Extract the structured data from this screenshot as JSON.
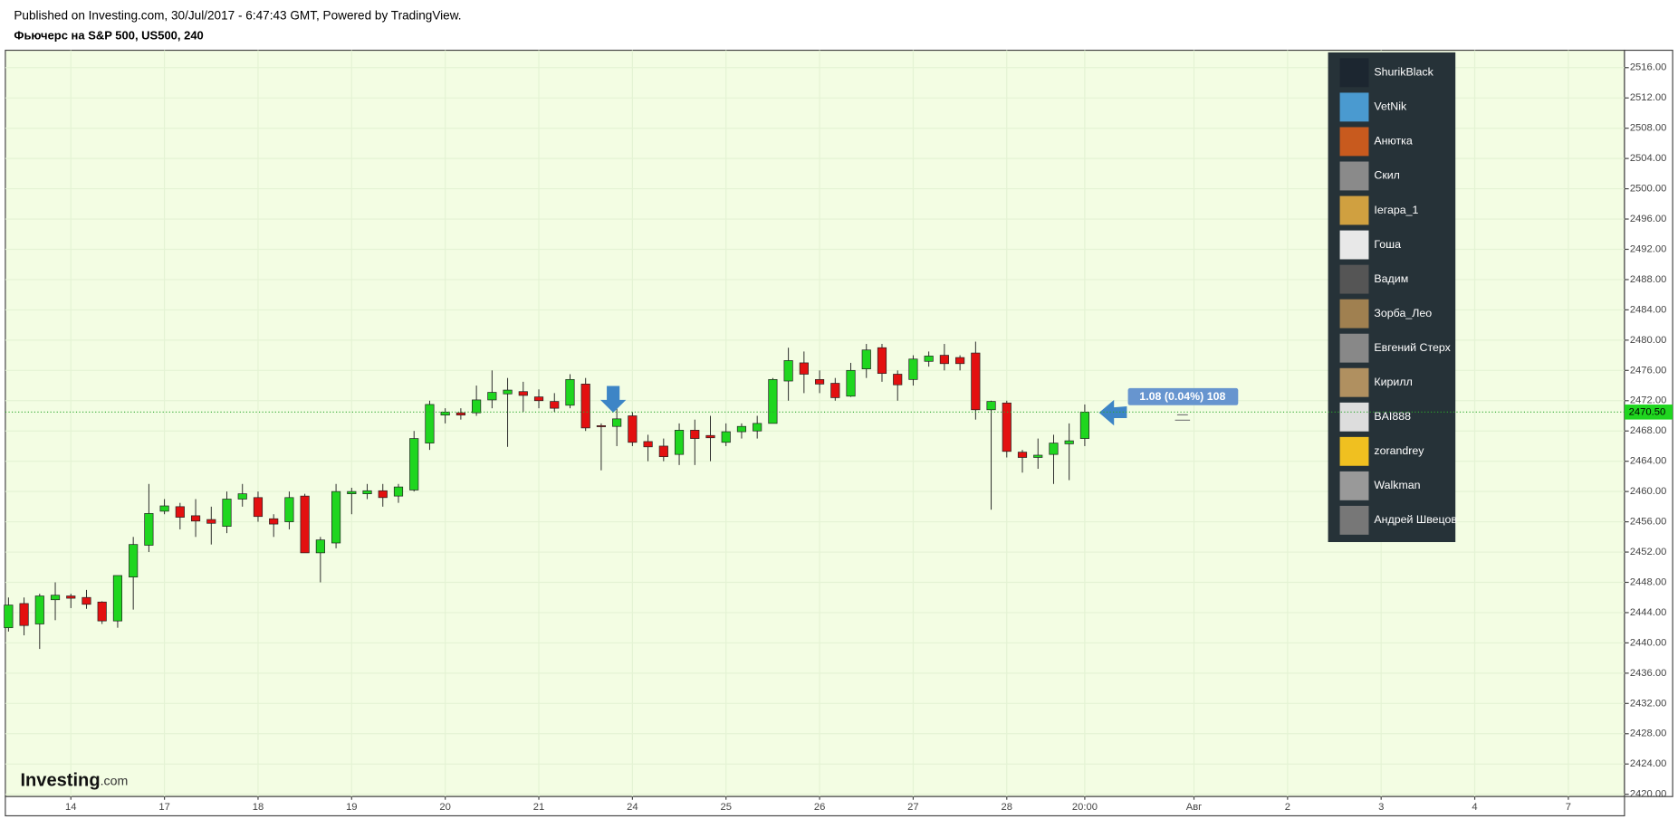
{
  "chart_data": {
    "type": "candlestick",
    "source": "Published on Investing.com, 30/Jul/2017 - 6:47:43 GMT, Powered by TradingView.",
    "title": "Фьючерс на S&P 500, US500, 240",
    "up_color": "#1fd61f",
    "down_color": "#e31010",
    "grid": true,
    "open": [
      2442,
      2445.2,
      2442.5,
      2445.7,
      2446.2,
      2446,
      2445.4,
      2442.9,
      2448.7,
      2452.9,
      2457.4,
      2458,
      2456.8,
      2456.3,
      2455.4,
      2459,
      2459.2,
      2456.4,
      2456,
      2459.4,
      2451.9,
      2453.2,
      2459.7,
      2459.7,
      2460.1,
      2459.4,
      2460.2,
      2466.4,
      2470.1,
      2470.4,
      2470.4,
      2472.1,
      2472.9,
      2473.2,
      2472.5,
      2471.9,
      2471.4,
      2474.2,
      2468.7,
      2468.6,
      2470,
      2466.6,
      2466,
      2464.9,
      2468.1,
      2467.4,
      2466.5,
      2467.9,
      2468,
      2469,
      2474.6,
      2477,
      2474.8,
      2474.3,
      2472.6,
      2476.2,
      2479,
      2475.5,
      2474.8,
      2477.2,
      2478,
      2477.7,
      2478.3,
      2470.8,
      2471.7,
      2465.2,
      2464.5,
      2464.9,
      2466.3,
      2467
    ],
    "high": [
      2446,
      2446,
      2446.5,
      2448,
      2446.5,
      2447,
      2445.5,
      2448.9,
      2454,
      2461,
      2459,
      2458.5,
      2459,
      2458,
      2460,
      2461,
      2460,
      2457,
      2460,
      2459.7,
      2454,
      2461,
      2460.5,
      2461,
      2461,
      2461,
      2468,
      2472,
      2471,
      2471,
      2474,
      2476,
      2475,
      2474.5,
      2473.5,
      2473,
      2475.5,
      2475,
      2469,
      2471,
      2470.5,
      2467.5,
      2467,
      2469,
      2469.5,
      2470,
      2469,
      2469,
      2470,
      2475,
      2479,
      2478.5,
      2476,
      2475,
      2477,
      2479.5,
      2479.5,
      2476,
      2478,
      2478.5,
      2479.5,
      2478,
      2479.8,
      2472,
      2472,
      2465.5,
      2467,
      2467.5,
      2469,
      2471.5
    ],
    "low": [
      2441.5,
      2441,
      2439.2,
      2443,
      2444.6,
      2444.5,
      2442.5,
      2442,
      2444.4,
      2452,
      2457,
      2455,
      2454,
      2453,
      2454.5,
      2458,
      2456,
      2454,
      2455,
      2451.9,
      2448,
      2452.5,
      2457,
      2459,
      2458,
      2458.5,
      2460,
      2465.5,
      2469,
      2469.5,
      2470,
      2471,
      2465.9,
      2470.5,
      2471,
      2470.5,
      2471,
      2468,
      2462.8,
      2466,
      2466,
      2464,
      2464,
      2463.5,
      2463.5,
      2464,
      2466,
      2467,
      2467,
      2469,
      2472,
      2473,
      2473,
      2472,
      2472.5,
      2475,
      2474.5,
      2472,
      2474,
      2476.5,
      2476,
      2476,
      2469.5,
      2457.6,
      2464.5,
      2462.5,
      2463,
      2461,
      2461.5,
      2466
    ],
    "close": [
      2445,
      2442.3,
      2446.2,
      2446.3,
      2445.9,
      2445.1,
      2442.9,
      2448.9,
      2453,
      2457.1,
      2458.1,
      2456.6,
      2456.1,
      2455.8,
      2459,
      2459.7,
      2456.7,
      2455.7,
      2459.2,
      2451.9,
      2453.6,
      2460,
      2460,
      2460.1,
      2459.2,
      2460.6,
      2467,
      2471.5,
      2470.5,
      2470.1,
      2472.1,
      2473.1,
      2473.4,
      2472.7,
      2472,
      2471,
      2474.8,
      2468.4,
      2468.6,
      2469.6,
      2466.5,
      2465.9,
      2464.6,
      2468.1,
      2467,
      2467.1,
      2467.9,
      2468.6,
      2469,
      2474.8,
      2477.3,
      2475.5,
      2474.2,
      2472.4,
      2476,
      2478.7,
      2475.6,
      2474.1,
      2477.5,
      2477.9,
      2476.9,
      2476.9,
      2470.8,
      2471.9,
      2465.3,
      2464.5,
      2464.8,
      2466.4,
      2466.7,
      2470.5
    ],
    "xlim": [
      -0.2,
      103.6
    ],
    "xticks": [
      {
        "value": 4,
        "label": "14"
      },
      {
        "value": 10,
        "label": "17"
      },
      {
        "value": 16,
        "label": "18"
      },
      {
        "value": 22,
        "label": "19"
      },
      {
        "value": 28,
        "label": "20"
      },
      {
        "value": 34,
        "label": "21"
      },
      {
        "value": 40,
        "label": "24"
      },
      {
        "value": 46,
        "label": "25"
      },
      {
        "value": 52,
        "label": "26"
      },
      {
        "value": 58,
        "label": "27"
      },
      {
        "value": 64,
        "label": "28"
      },
      {
        "value": 69,
        "label": "20:00"
      },
      {
        "value": 76,
        "label": "Авг"
      },
      {
        "value": 82,
        "label": "2"
      },
      {
        "value": 88,
        "label": "3"
      },
      {
        "value": 94,
        "label": "4"
      },
      {
        "value": 100,
        "label": "7"
      }
    ],
    "ylim": [
      2419.7,
      2518.3
    ],
    "yticks": [
      {
        "value": 2420,
        "label": "2420.00"
      },
      {
        "value": 2424,
        "label": "2424.00"
      },
      {
        "value": 2428,
        "label": "2428.00"
      },
      {
        "value": 2432,
        "label": "2432.00"
      },
      {
        "value": 2436,
        "label": "2436.00"
      },
      {
        "value": 2440,
        "label": "2440.00"
      },
      {
        "value": 2444,
        "label": "2444.00"
      },
      {
        "value": 2448,
        "label": "2448.00"
      },
      {
        "value": 2452,
        "label": "2452.00"
      },
      {
        "value": 2456,
        "label": "2456.00"
      },
      {
        "value": 2460,
        "label": "2460.00"
      },
      {
        "value": 2464,
        "label": "2464.00"
      },
      {
        "value": 2468,
        "label": "2468.00"
      },
      {
        "value": 2472,
        "label": "2472.00"
      },
      {
        "value": 2476,
        "label": "2476.00"
      },
      {
        "value": 2480,
        "label": "2480.00"
      },
      {
        "value": 2484,
        "label": "2484.00"
      },
      {
        "value": 2488,
        "label": "2488.00"
      },
      {
        "value": 2492,
        "label": "2492.00"
      },
      {
        "value": 2496,
        "label": "2496.00"
      },
      {
        "value": 2500,
        "label": "2500.00"
      },
      {
        "value": 2504,
        "label": "2504.00"
      },
      {
        "value": 2508,
        "label": "2508.00"
      },
      {
        "value": 2512,
        "label": "2512.00"
      },
      {
        "value": 2516,
        "label": "2516.00"
      }
    ],
    "last_price": {
      "value": 2470.5,
      "label": "2470.50"
    },
    "annotation": "1.08 (0.04%) 108"
  },
  "users": [
    "ShurikBlack",
    "VetNik",
    "Анютка",
    "Скил",
    "Іегара_1",
    "Гоша",
    "Вадим",
    "Зорба_Лео",
    "Евгений Стерх",
    "Кирилл",
    "BAI888",
    "zorandrey",
    "Walkman",
    "Андрей Швецов"
  ],
  "logo": {
    "brand": "Investing",
    "suffix": ".com"
  }
}
